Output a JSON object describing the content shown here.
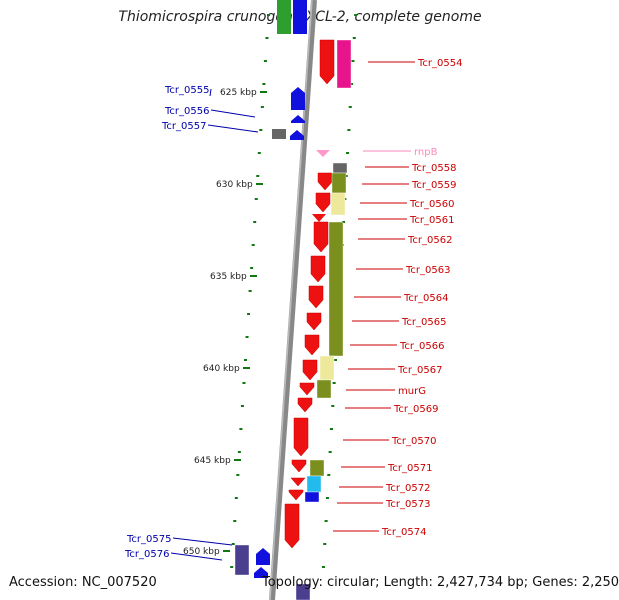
{
  "title": "Thiomicrospira crunogena XCL-2, complete genome",
  "footer": {
    "accession": "Accession: NC_007520",
    "topology": "Topology: circular; Length: 2,427,734 bp; Genes: 2,250"
  },
  "colors": {
    "gene_red": "#ee1111",
    "gene_blue": "#1111dd",
    "gene_gray": "#666666",
    "gene_pink": "#ff99cc",
    "cog_green": "#7a8f1e",
    "cog_pale": "#eee89a",
    "cog_magenta": "#e8148c",
    "cog_cyan": "#22bbee",
    "cog_purple": "#4a3f8f",
    "axis": "#888888",
    "tick": "#117711",
    "label_red": "#cc0000",
    "label_blue": "#0000aa",
    "label_pink": "#ff88bb"
  },
  "scale_labels": [
    "625 kbp",
    "630 kbp",
    "635 kbp",
    "640 kbp",
    "645 kbp",
    "650 kbp"
  ],
  "gene_labels": [
    {
      "text": "Tcr_0554",
      "color": "red"
    },
    {
      "text": "Tcr_0555",
      "color": "blue"
    },
    {
      "text": "Tcr_0556",
      "color": "blue"
    },
    {
      "text": "Tcr_0557",
      "color": "blue"
    },
    {
      "text": "rnpB",
      "color": "pink"
    },
    {
      "text": "Tcr_0558",
      "color": "red"
    },
    {
      "text": "Tcr_0559",
      "color": "red"
    },
    {
      "text": "Tcr_0560",
      "color": "red"
    },
    {
      "text": "Tcr_0561",
      "color": "red"
    },
    {
      "text": "Tcr_0562",
      "color": "red"
    },
    {
      "text": "Tcr_0563",
      "color": "red"
    },
    {
      "text": "Tcr_0564",
      "color": "red"
    },
    {
      "text": "Tcr_0565",
      "color": "red"
    },
    {
      "text": "Tcr_0566",
      "color": "red"
    },
    {
      "text": "Tcr_0567",
      "color": "red"
    },
    {
      "text": "murG",
      "color": "red"
    },
    {
      "text": "Tcr_0569",
      "color": "red"
    },
    {
      "text": "Tcr_0570",
      "color": "red"
    },
    {
      "text": "Tcr_0571",
      "color": "red"
    },
    {
      "text": "Tcr_0572",
      "color": "red"
    },
    {
      "text": "Tcr_0573",
      "color": "red"
    },
    {
      "text": "Tcr_0574",
      "color": "red"
    },
    {
      "text": "Tcr_0575",
      "color": "blue"
    },
    {
      "text": "Tcr_0576",
      "color": "blue"
    }
  ]
}
